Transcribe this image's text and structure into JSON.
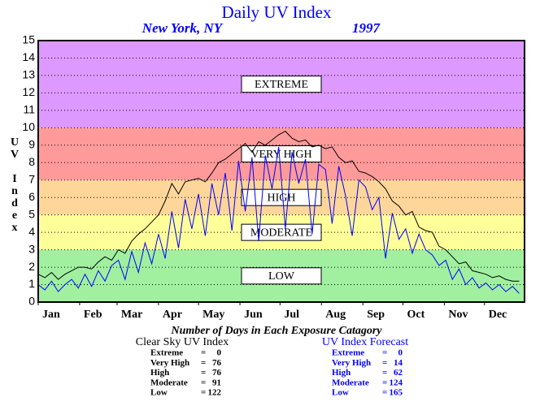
{
  "chart_data": {
    "type": "line",
    "title": "Daily UV Index",
    "subtitle_left": "New York, NY",
    "subtitle_right": "1997",
    "y_label": "UV Index",
    "xlim": [
      1,
      365
    ],
    "xticks": [
      {
        "value": 1,
        "label": "Jan"
      },
      {
        "value": 32,
        "label": "Feb"
      },
      {
        "value": 60,
        "label": "Mar"
      },
      {
        "value": 91,
        "label": "Apr"
      },
      {
        "value": 121,
        "label": "May"
      },
      {
        "value": 152,
        "label": "Jun"
      },
      {
        "value": 182,
        "label": "Jul"
      },
      {
        "value": 213,
        "label": "Aug"
      },
      {
        "value": 244,
        "label": "Sep"
      },
      {
        "value": 274,
        "label": "Oct"
      },
      {
        "value": 305,
        "label": "Nov"
      },
      {
        "value": 335,
        "label": "Dec"
      }
    ],
    "ylim": [
      0,
      15
    ],
    "yticks": [
      0,
      1,
      2,
      3,
      4,
      5,
      6,
      7,
      8,
      9,
      10,
      11,
      12,
      13,
      14,
      15
    ],
    "grid": true,
    "bands": [
      {
        "name": "LOW",
        "from": 0,
        "to": 3,
        "color": "#a0f0a0"
      },
      {
        "name": "MODERATE",
        "from": 3,
        "to": 5,
        "color": "#ffff99"
      },
      {
        "name": "HIGH",
        "from": 5,
        "to": 7,
        "color": "#ffd699"
      },
      {
        "name": "VERY HIGH",
        "from": 7,
        "to": 10,
        "color": "#ff9a9a"
      },
      {
        "name": "EXTREME",
        "from": 10,
        "to": 15,
        "color": "#dd99ff"
      }
    ],
    "x": [
      1,
      6,
      11,
      16,
      21,
      26,
      31,
      36,
      41,
      46,
      51,
      56,
      61,
      66,
      71,
      76,
      81,
      86,
      91,
      96,
      101,
      106,
      111,
      116,
      121,
      126,
      131,
      136,
      141,
      146,
      151,
      156,
      161,
      166,
      171,
      176,
      181,
      186,
      191,
      196,
      201,
      206,
      211,
      216,
      221,
      226,
      231,
      236,
      241,
      246,
      251,
      256,
      261,
      266,
      271,
      276,
      281,
      286,
      291,
      296,
      301,
      306,
      311,
      316,
      321,
      326,
      331,
      336,
      341,
      346,
      351,
      356,
      361
    ],
    "series": [
      {
        "name": "Clear Sky UV Index",
        "color": "#000000",
        "values": [
          1.6,
          1.4,
          1.7,
          1.3,
          1.6,
          1.8,
          2.0,
          2.0,
          1.9,
          2.3,
          2.6,
          2.4,
          3.0,
          2.8,
          3.5,
          3.9,
          4.2,
          4.6,
          5.0,
          5.8,
          6.8,
          6.2,
          6.9,
          7.0,
          7.1,
          6.9,
          7.4,
          8.0,
          8.2,
          8.5,
          8.8,
          9.1,
          8.6,
          9.2,
          9.0,
          9.3,
          9.6,
          9.8,
          9.4,
          9.2,
          9.3,
          8.9,
          9.0,
          8.8,
          8.9,
          8.3,
          8.0,
          8.1,
          7.5,
          7.4,
          7.2,
          6.9,
          6.5,
          5.8,
          5.5,
          5.0,
          5.2,
          4.3,
          4.1,
          4.0,
          3.2,
          3.0,
          2.6,
          2.2,
          2.3,
          1.8,
          1.7,
          1.6,
          1.4,
          1.5,
          1.3,
          1.2,
          1.2
        ]
      },
      {
        "name": "UV Index Forecast",
        "color": "#0000ff",
        "values": [
          1.0,
          0.7,
          1.2,
          0.6,
          1.0,
          1.3,
          0.8,
          1.6,
          0.9,
          1.8,
          1.2,
          2.1,
          2.4,
          1.3,
          2.9,
          1.7,
          3.4,
          2.2,
          3.9,
          2.5,
          5.2,
          3.1,
          5.9,
          4.2,
          6.2,
          3.8,
          6.8,
          5.0,
          7.4,
          4.1,
          8.1,
          5.2,
          8.3,
          3.5,
          8.4,
          6.5,
          8.9,
          4.2,
          8.6,
          6.8,
          8.2,
          3.9,
          7.9,
          7.6,
          4.5,
          7.8,
          6.1,
          3.8,
          7.0,
          6.6,
          5.3,
          6.0,
          2.5,
          5.1,
          3.6,
          4.2,
          2.8,
          3.9,
          3.0,
          2.7,
          2.1,
          2.4,
          1.3,
          1.9,
          1.0,
          1.4,
          0.8,
          1.1,
          0.7,
          1.0,
          0.6,
          0.9,
          0.5
        ]
      }
    ],
    "summary": {
      "title": "Number of Days in Each Exposure Catagory",
      "separator": "=",
      "columns": [
        {
          "heading": "Clear Sky UV Index",
          "color": "#000000",
          "rows": [
            {
              "label": "Extreme",
              "value": 0
            },
            {
              "label": "Very High",
              "value": 76
            },
            {
              "label": "High",
              "value": 76
            },
            {
              "label": "Moderate",
              "value": 91
            },
            {
              "label": "Low",
              "value": 122
            }
          ]
        },
        {
          "heading": "UV Index Forecast",
          "color": "#0000ff",
          "rows": [
            {
              "label": "Extreme",
              "value": 0
            },
            {
              "label": "Very High",
              "value": 14
            },
            {
              "label": "High",
              "value": 62
            },
            {
              "label": "Moderate",
              "value": 124
            },
            {
              "label": "Low",
              "value": 165
            }
          ]
        }
      ]
    }
  }
}
